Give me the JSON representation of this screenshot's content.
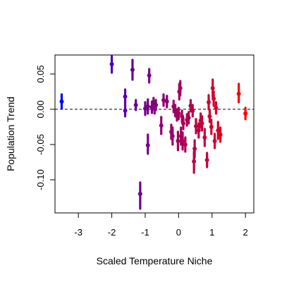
{
  "chart_data": {
    "type": "scatter",
    "title": "",
    "xlabel": "Scaled Temperature Niche",
    "ylabel": "Population Trend",
    "xlim": [
      -3.7,
      2.25
    ],
    "ylim": [
      -0.147,
      0.077
    ],
    "x_ticks": [
      -3,
      -2,
      -1,
      0,
      1,
      2
    ],
    "y_ticks": [
      -0.1,
      -0.05,
      0.0,
      0.05
    ],
    "x_tick_labels": [
      "-3",
      "-2",
      "-1",
      "0",
      "1",
      "2"
    ],
    "y_tick_labels": [
      "-0.10",
      "-0.05",
      "0.00",
      "0.05"
    ],
    "reference_line": {
      "y": 0,
      "style": "dashed"
    },
    "error_bars": true,
    "color_scale": {
      "low": "#0000ff",
      "high": "#ff0000",
      "variable": "x"
    },
    "points": [
      {
        "x": -3.5,
        "y": 0.011,
        "lo": 0.001,
        "hi": 0.021
      },
      {
        "x": -2.0,
        "y": 0.064,
        "lo": 0.052,
        "hi": 0.075
      },
      {
        "x": -1.6,
        "y": 0.018,
        "lo": 0.006,
        "hi": 0.028
      },
      {
        "x": -1.6,
        "y": -0.002,
        "lo": -0.01,
        "hi": 0.006
      },
      {
        "x": -1.38,
        "y": 0.056,
        "lo": 0.042,
        "hi": 0.07
      },
      {
        "x": -1.28,
        "y": 0.006,
        "lo": -0.001,
        "hi": 0.013
      },
      {
        "x": -1.15,
        "y": -0.12,
        "lo": -0.141,
        "hi": -0.104
      },
      {
        "x": -1.0,
        "y": 0.001,
        "lo": -0.008,
        "hi": 0.01
      },
      {
        "x": -0.88,
        "y": 0.048,
        "lo": 0.038,
        "hi": 0.057
      },
      {
        "x": -0.92,
        "y": -0.051,
        "lo": -0.063,
        "hi": -0.036
      },
      {
        "x": -0.92,
        "y": 0.004,
        "lo": -0.006,
        "hi": 0.014
      },
      {
        "x": -0.8,
        "y": 0.003,
        "lo": -0.005,
        "hi": 0.011
      },
      {
        "x": -0.75,
        "y": 0.009,
        "lo": 0.002,
        "hi": 0.016
      },
      {
        "x": -0.72,
        "y": 0.001,
        "lo": -0.006,
        "hi": 0.008
      },
      {
        "x": -0.68,
        "y": 0.006,
        "lo": -0.001,
        "hi": 0.013
      },
      {
        "x": -0.52,
        "y": -0.023,
        "lo": -0.035,
        "hi": -0.011
      },
      {
        "x": -0.45,
        "y": 0.013,
        "lo": 0.005,
        "hi": 0.021
      },
      {
        "x": -0.35,
        "y": 0.011,
        "lo": 0.003,
        "hi": 0.019
      },
      {
        "x": -0.22,
        "y": -0.032,
        "lo": -0.042,
        "hi": -0.022
      },
      {
        "x": -0.18,
        "y": -0.038,
        "lo": -0.05,
        "hi": -0.026
      },
      {
        "x": -0.15,
        "y": 0.004,
        "lo": -0.004,
        "hi": 0.012
      },
      {
        "x": -0.1,
        "y": -0.002,
        "lo": -0.01,
        "hi": 0.006
      },
      {
        "x": -0.05,
        "y": -0.008,
        "lo": -0.016,
        "hi": 0.0
      },
      {
        "x": -0.02,
        "y": -0.045,
        "lo": -0.058,
        "hi": -0.032
      },
      {
        "x": 0.0,
        "y": -0.006,
        "lo": -0.014,
        "hi": 0.002
      },
      {
        "x": 0.02,
        "y": 0.025,
        "lo": 0.014,
        "hi": 0.036
      },
      {
        "x": 0.05,
        "y": 0.03,
        "lo": 0.02,
        "hi": 0.04
      },
      {
        "x": 0.07,
        "y": -0.038,
        "lo": -0.05,
        "hi": -0.026
      },
      {
        "x": 0.1,
        "y": -0.01,
        "lo": -0.018,
        "hi": -0.002
      },
      {
        "x": 0.12,
        "y": -0.045,
        "lo": -0.057,
        "hi": -0.033
      },
      {
        "x": 0.14,
        "y": -0.02,
        "lo": -0.028,
        "hi": -0.012
      },
      {
        "x": 0.2,
        "y": -0.05,
        "lo": -0.06,
        "hi": -0.04
      },
      {
        "x": 0.25,
        "y": -0.015,
        "lo": -0.023,
        "hi": -0.007
      },
      {
        "x": 0.3,
        "y": -0.012,
        "lo": -0.02,
        "hi": -0.004
      },
      {
        "x": 0.36,
        "y": 0.005,
        "lo": -0.003,
        "hi": 0.013
      },
      {
        "x": 0.42,
        "y": -0.002,
        "lo": -0.01,
        "hi": 0.006
      },
      {
        "x": 0.46,
        "y": -0.074,
        "lo": -0.09,
        "hi": -0.06
      },
      {
        "x": 0.48,
        "y": -0.056,
        "lo": -0.068,
        "hi": -0.044
      },
      {
        "x": 0.52,
        "y": -0.024,
        "lo": -0.034,
        "hi": -0.014
      },
      {
        "x": 0.6,
        "y": -0.03,
        "lo": -0.04,
        "hi": -0.02
      },
      {
        "x": 0.66,
        "y": -0.016,
        "lo": -0.026,
        "hi": -0.006
      },
      {
        "x": 0.7,
        "y": -0.02,
        "lo": -0.03,
        "hi": -0.01
      },
      {
        "x": 0.78,
        "y": -0.04,
        "lo": -0.052,
        "hi": -0.028
      },
      {
        "x": 0.85,
        "y": -0.072,
        "lo": -0.082,
        "hi": -0.062
      },
      {
        "x": 0.9,
        "y": 0.01,
        "lo": 0.0,
        "hi": 0.02
      },
      {
        "x": 0.93,
        "y": -0.01,
        "lo": -0.018,
        "hi": -0.002
      },
      {
        "x": 0.98,
        "y": -0.025,
        "lo": -0.035,
        "hi": -0.015
      },
      {
        "x": 1.02,
        "y": 0.03,
        "lo": 0.018,
        "hi": 0.042
      },
      {
        "x": 1.05,
        "y": 0.015,
        "lo": 0.005,
        "hi": 0.025
      },
      {
        "x": 1.08,
        "y": -0.045,
        "lo": -0.055,
        "hi": -0.035
      },
      {
        "x": 1.12,
        "y": 0.002,
        "lo": -0.006,
        "hi": 0.01
      },
      {
        "x": 1.18,
        "y": -0.03,
        "lo": -0.042,
        "hi": -0.018
      },
      {
        "x": 1.25,
        "y": -0.036,
        "lo": -0.046,
        "hi": -0.026
      },
      {
        "x": 1.8,
        "y": 0.022,
        "lo": 0.01,
        "hi": 0.036
      },
      {
        "x": 2.0,
        "y": -0.006,
        "lo": -0.014,
        "hi": 0.002
      }
    ]
  }
}
